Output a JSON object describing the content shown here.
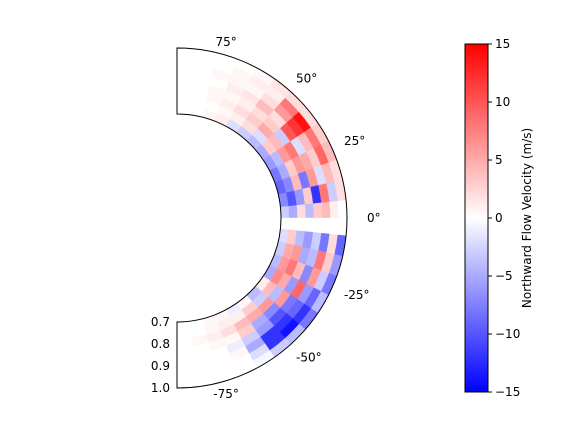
{
  "chart_data": {
    "type": "heatmap",
    "projection": "polar-wedge",
    "theta_range_deg": [
      -90,
      90
    ],
    "r_range": [
      0.7,
      1.0
    ],
    "theta_tick_labels": [
      "75°",
      "50°",
      "25°",
      "0°",
      "-25°",
      "-50°",
      "-75°"
    ],
    "theta_tick_values": [
      75,
      50,
      25,
      0,
      -25,
      -50,
      -75
    ],
    "r_tick_labels": [
      "0.7",
      "0.8",
      "0.9",
      "1.0"
    ],
    "r_tick_values": [
      0.7,
      0.8,
      0.9,
      1.0
    ],
    "colorbar": {
      "label": "Northward Flow Velocity (m/s)",
      "colormap": "bwr",
      "vmin": -15,
      "vmax": 15,
      "tick_labels": [
        "15",
        "10",
        "5",
        "0",
        "−5",
        "−10",
        "−15"
      ],
      "tick_values": [
        15,
        10,
        5,
        0,
        -5,
        -10,
        -15
      ]
    },
    "r_edges": [
      0.7,
      0.7375,
      0.775,
      0.8125,
      0.85,
      0.8875,
      0.925,
      0.9625,
      1.0
    ],
    "theta_edges_deg": [
      90,
      83,
      76,
      69,
      62,
      55,
      48,
      41,
      34,
      27,
      20,
      13,
      6,
      0,
      -6,
      -13,
      -20,
      -27,
      -34,
      -41,
      -48,
      -55,
      -62,
      -69,
      -76,
      -83,
      -90
    ],
    "values_by_theta_row": [
      [
        0,
        0,
        0,
        0,
        0,
        0,
        0,
        0
      ],
      [
        0,
        0,
        0,
        0,
        0,
        0,
        0,
        0
      ],
      [
        0.5,
        0,
        0.5,
        0.5,
        0,
        0.5,
        0,
        0
      ],
      [
        1,
        0.5,
        1,
        0.5,
        1,
        0.5,
        0.5,
        0
      ],
      [
        -2,
        1,
        2,
        1,
        1.5,
        0.5,
        1,
        0.5
      ],
      [
        -3,
        2,
        3,
        2,
        4,
        2,
        1,
        1.5
      ],
      [
        -4,
        -2,
        5,
        3,
        2,
        6,
        8,
        2
      ],
      [
        -5,
        3,
        4,
        -3,
        10,
        12,
        14,
        2
      ],
      [
        -6,
        -4,
        6,
        8,
        -2,
        4,
        8,
        3
      ],
      [
        -8,
        -5,
        3,
        6,
        5,
        3,
        9,
        4
      ],
      [
        -9,
        -7,
        4,
        -8,
        6,
        -2,
        4,
        2
      ],
      [
        -7,
        -10,
        -6,
        3,
        -12,
        8,
        -3,
        2
      ],
      [
        -3,
        -5,
        2,
        -4,
        3,
        4,
        1,
        0
      ],
      [
        0,
        0,
        0,
        0,
        0,
        0,
        0,
        0
      ],
      [
        -2,
        3,
        -4,
        -6,
        -3,
        -8,
        2,
        -9
      ],
      [
        -3,
        5,
        6,
        -5,
        -4,
        8,
        3,
        -6
      ],
      [
        -4,
        6,
        8,
        4,
        -7,
        6,
        -3,
        -8
      ],
      [
        -5,
        7,
        5,
        -6,
        9,
        -6,
        -9,
        -4
      ],
      [
        1,
        4,
        -4,
        6,
        -8,
        -9,
        -12,
        -8
      ],
      [
        -4,
        -3,
        6,
        -7,
        -10,
        -12,
        -14,
        -4
      ],
      [
        0.5,
        3,
        5,
        -5,
        -6,
        -12,
        -12,
        -3
      ],
      [
        -1,
        1,
        4,
        3,
        -3,
        -5,
        -2,
        -0.5
      ],
      [
        0.5,
        1,
        2,
        0.5,
        -1,
        0.5,
        0,
        0
      ],
      [
        0.5,
        0.5,
        1,
        0.5,
        0,
        0,
        0,
        0
      ],
      [
        0,
        0,
        0.5,
        0,
        0,
        0,
        0,
        0
      ],
      [
        0,
        0,
        0,
        0,
        0,
        0,
        0,
        0
      ]
    ]
  }
}
